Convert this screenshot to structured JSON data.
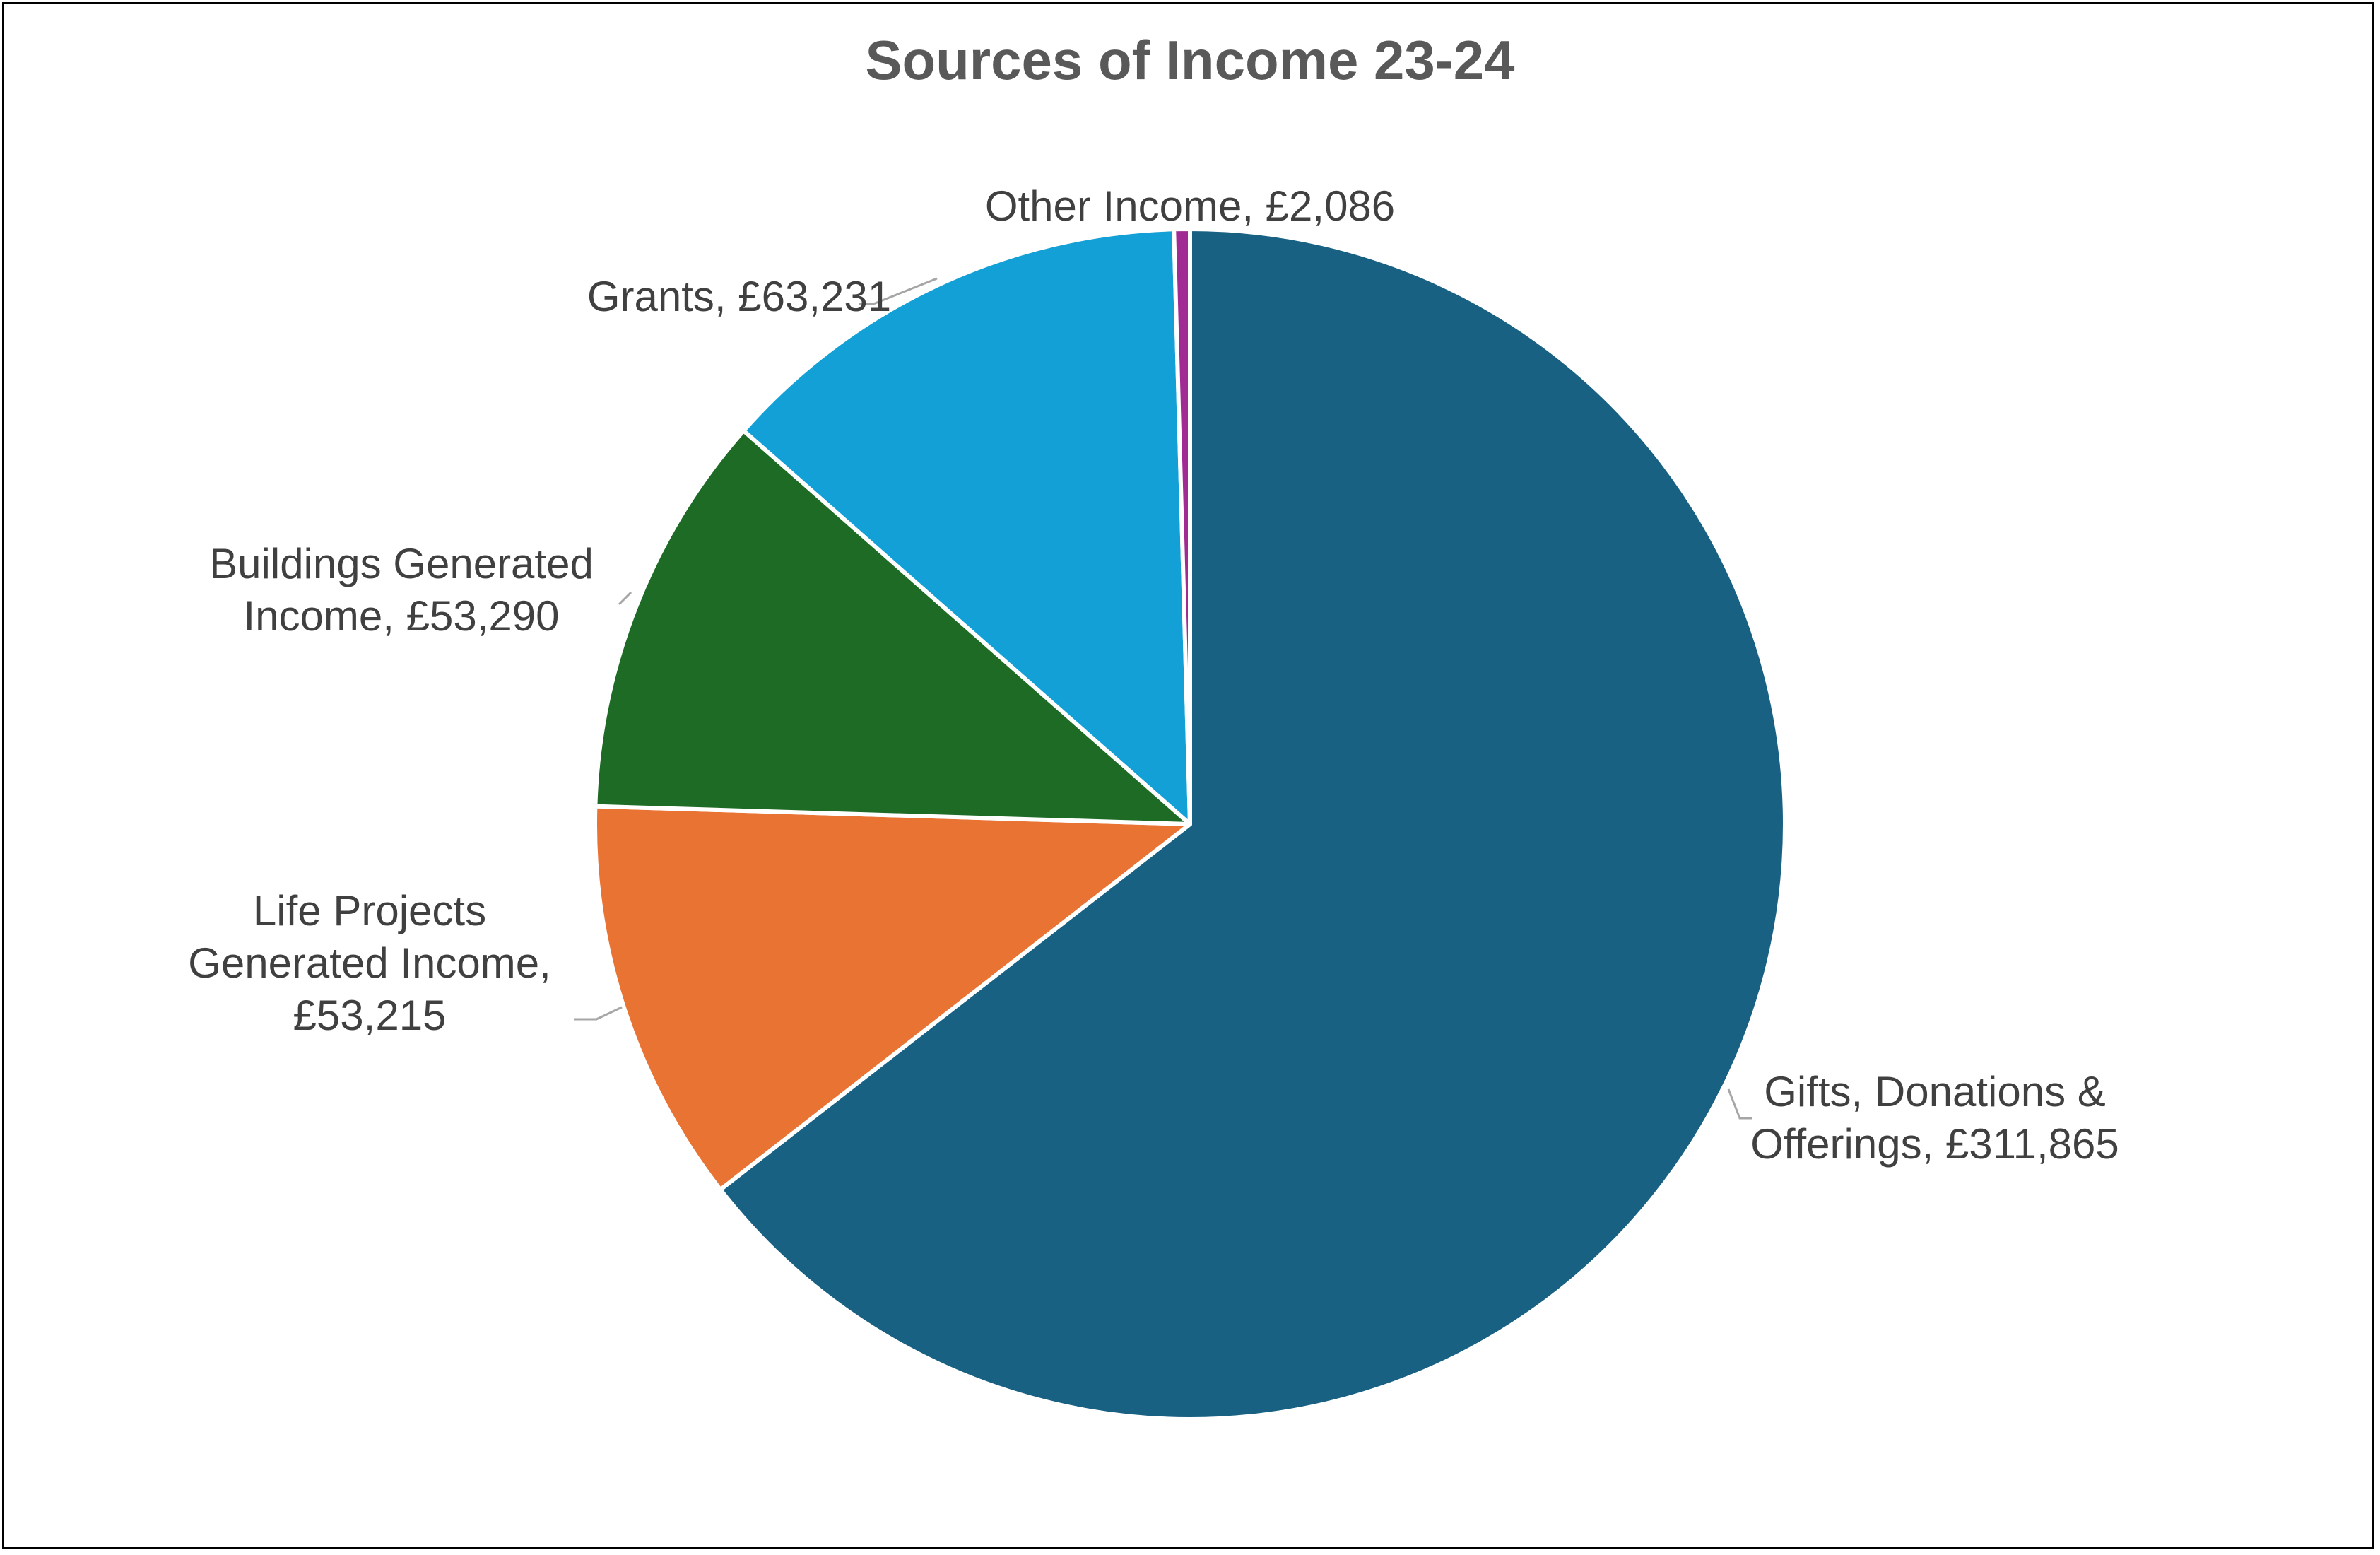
{
  "chart_data": {
    "type": "pie",
    "title": "Sources of Income 23-24",
    "start_angle_deg": 0,
    "direction": "clockwise",
    "slices": [
      {
        "name": "Gifts, Donations & Offerings",
        "value": 311865,
        "value_label": "£311,865",
        "color": "#186183",
        "label_lines": [
          "Gifts, Donations &",
          "Offerings, £311,865"
        ]
      },
      {
        "name": "Life Projects Generated Income",
        "value": 53215,
        "value_label": "£53,215",
        "color": "#E97333",
        "label_lines": [
          "Life Projects",
          "Generated Income,",
          "£53,215"
        ]
      },
      {
        "name": "Buildings Generated Income",
        "value": 53290,
        "value_label": "£53,290",
        "color": "#1D6B25",
        "label_lines": [
          "Buildings Generated",
          "Income, £53,290"
        ]
      },
      {
        "name": "Grants",
        "value": 63231,
        "value_label": "£63,231",
        "color": "#12A0D7",
        "label_lines": [
          "Grants, £63,231"
        ]
      },
      {
        "name": "Other Income",
        "value": 2086,
        "value_label": "£2,086",
        "color": "#A02B93",
        "label_lines": [
          "Other Income, £2,086"
        ]
      }
    ],
    "legend": "none",
    "data_labels": "category name and value, outside end with leader lines"
  }
}
